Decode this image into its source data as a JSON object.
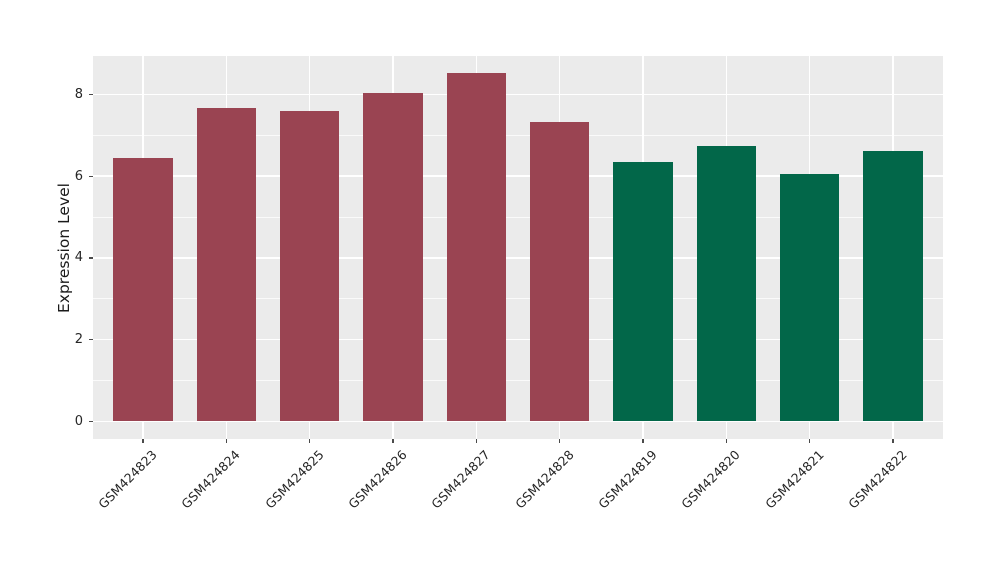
{
  "chart_data": {
    "type": "bar",
    "title": "",
    "xlabel": "",
    "ylabel": "Expression Level",
    "legend": "none",
    "grid": true,
    "panel_background": "#EBEBEB",
    "gridline_color": "#FFFFFF",
    "tick_color": "#4a4a4a",
    "tick_label_color": "#262626",
    "group_colors": {
      "red": "#9A4452",
      "green": "#026749"
    },
    "bars": [
      {
        "label": "GSM424823",
        "value": 6.45,
        "group": "red"
      },
      {
        "label": "GSM424824",
        "value": 7.67,
        "group": "red"
      },
      {
        "label": "GSM424825",
        "value": 7.59,
        "group": "red"
      },
      {
        "label": "GSM424826",
        "value": 8.03,
        "group": "red"
      },
      {
        "label": "GSM424827",
        "value": 8.52,
        "group": "red"
      },
      {
        "label": "GSM424828",
        "value": 7.32,
        "group": "red"
      },
      {
        "label": "GSM424819",
        "value": 6.35,
        "group": "green"
      },
      {
        "label": "GSM424820",
        "value": 6.75,
        "group": "green"
      },
      {
        "label": "GSM424821",
        "value": 6.05,
        "group": "green"
      },
      {
        "label": "GSM424822",
        "value": 6.62,
        "group": "green"
      }
    ],
    "y_axis": {
      "major_ticks": [
        0,
        2,
        4,
        6,
        8
      ],
      "minor_ticks": [
        1,
        3,
        5,
        7
      ],
      "range": [
        -0.43,
        8.94
      ]
    }
  }
}
